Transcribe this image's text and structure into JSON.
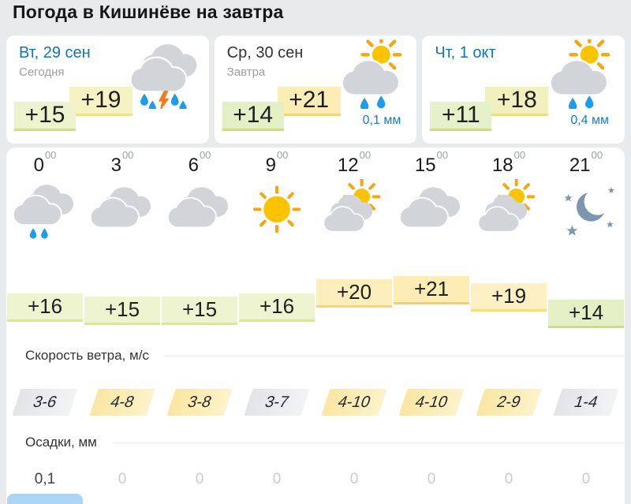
{
  "header": {
    "title": "Погода в Кишинёве на завтра"
  },
  "day_cards": [
    {
      "date": "Вт, 29 сен",
      "date_color": "#0e76b8",
      "subtitle": "Сегодня",
      "temp_min": "+15",
      "temp_max": "+19",
      "icon": "storm-rain-cloud",
      "precip": "",
      "temp_min_bg": "#ecf3cd",
      "temp_min_border": "#cfe36d",
      "temp_max_bg": "#f6f2c3",
      "temp_max_border": "#e9e481"
    },
    {
      "date": "Ср, 30 сен",
      "date_color": "#333333",
      "subtitle": "Завтра",
      "temp_min": "+14",
      "temp_max": "+21",
      "icon": "sun-rain-cloud",
      "precip": "0,1 мм",
      "temp_min_bg": "#e3f0c6",
      "temp_min_border": "#cbe26f",
      "temp_max_bg": "#fdecb6",
      "temp_max_border": "#f0d67a"
    },
    {
      "date": "Чт, 1 окт",
      "date_color": "#0e76b8",
      "subtitle": "",
      "temp_min": "+11",
      "temp_max": "+18",
      "icon": "sun-rain-cloud",
      "precip": "0,4 мм",
      "temp_min_bg": "#e4f1c9",
      "temp_min_border": "#cde070",
      "temp_max_bg": "#f3f0c0",
      "temp_max_border": "#e6e07e"
    }
  ],
  "hourly": {
    "times": [
      {
        "hour": "0",
        "minutes": "00"
      },
      {
        "hour": "3",
        "minutes": "00"
      },
      {
        "hour": "6",
        "minutes": "00"
      },
      {
        "hour": "9",
        "minutes": "00"
      },
      {
        "hour": "12",
        "minutes": "00"
      },
      {
        "hour": "15",
        "minutes": "00"
      },
      {
        "hour": "18",
        "minutes": "00"
      },
      {
        "hour": "21",
        "minutes": "00"
      }
    ],
    "icons": [
      "rain-cloud",
      "cloudy",
      "cloudy",
      "sunny",
      "partly-cloudy",
      "cloudy",
      "partly-cloudy",
      "clear-night"
    ],
    "temps": [
      {
        "label": "+16",
        "value": 16,
        "bg": "#edf4cf",
        "border": "#dbe97d"
      },
      {
        "label": "+15",
        "value": 15,
        "bg": "#edf4cf",
        "border": "#dbe97d"
      },
      {
        "label": "+15",
        "value": 15,
        "bg": "#edf4cf",
        "border": "#dbe97d"
      },
      {
        "label": "+16",
        "value": 16,
        "bg": "#edf4cf",
        "border": "#dbe97d"
      },
      {
        "label": "+20",
        "value": 20,
        "bg": "#fdeebb",
        "border": "#f6d768"
      },
      {
        "label": "+21",
        "value": 21,
        "bg": "#fdecb3",
        "border": "#f5d25c"
      },
      {
        "label": "+19",
        "value": 19,
        "bg": "#fdf0c4",
        "border": "#f7dc7c"
      },
      {
        "label": "+14",
        "value": 14,
        "bg": "#e3f0c5",
        "border": "#cbe26f"
      }
    ],
    "wind_label": "Скорость ветра, м/с",
    "winds": [
      {
        "label": "3-6",
        "tone": "wind-gray"
      },
      {
        "label": "4-8",
        "tone": "wind-yellow"
      },
      {
        "label": "3-8",
        "tone": "wind-yellow"
      },
      {
        "label": "3-7",
        "tone": "wind-gray"
      },
      {
        "label": "4-10",
        "tone": "wind-yellow"
      },
      {
        "label": "4-10",
        "tone": "wind-yellow"
      },
      {
        "label": "2-9",
        "tone": "wind-yellow"
      },
      {
        "label": "1-4",
        "tone": "wind-gray"
      }
    ],
    "precip_label": "Осадки, мм",
    "precips": [
      {
        "label": "0,1",
        "color": "#3c4043",
        "bar": true
      },
      {
        "label": "0",
        "color": "#c8ccd2",
        "bar": false
      },
      {
        "label": "0",
        "color": "#c8ccd2",
        "bar": false
      },
      {
        "label": "0",
        "color": "#c8ccd2",
        "bar": false
      },
      {
        "label": "0",
        "color": "#c8ccd2",
        "bar": false
      },
      {
        "label": "0",
        "color": "#c8ccd2",
        "bar": false
      },
      {
        "label": "0",
        "color": "#c8ccd2",
        "bar": false
      },
      {
        "label": "0",
        "color": "#c8ccd2",
        "bar": false
      }
    ]
  },
  "colors": {
    "page_bg": "#e9eaec",
    "panel_bg": "#ffffff",
    "link": "#0e76b8",
    "precip_text": "#1a7cc4",
    "precip_bar": "#abd5f3"
  }
}
